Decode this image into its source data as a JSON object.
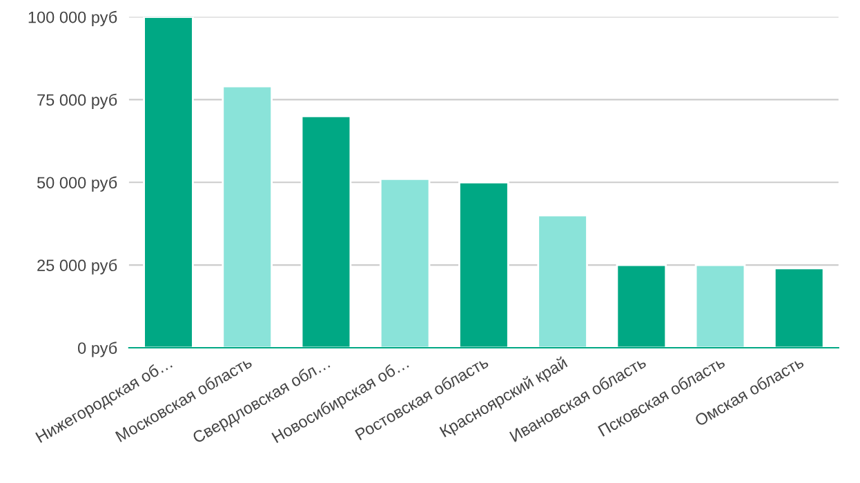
{
  "chart_data": {
    "type": "bar",
    "categories": [
      "Нижегородская об…",
      "Московская область",
      "Свердловская обл…",
      "Новосибирская об…",
      "Ростовская область",
      "Красноярский край",
      "Ивановская область",
      "Псковская область",
      "Омская область"
    ],
    "values": [
      100000,
      79000,
      70000,
      51000,
      50000,
      40000,
      25000,
      25000,
      24000
    ],
    "colors": [
      "#00a884",
      "#8ae3d9",
      "#00a884",
      "#8ae3d9",
      "#00a884",
      "#8ae3d9",
      "#00a884",
      "#8ae3d9",
      "#00a884"
    ],
    "ylim": [
      0,
      100000
    ],
    "yticks": [
      {
        "value": 0,
        "label": "0 руб"
      },
      {
        "value": 25000,
        "label": "25 000 руб"
      },
      {
        "value": 50000,
        "label": "50 000 руб"
      },
      {
        "value": 75000,
        "label": "75 000 руб"
      },
      {
        "value": 100000,
        "label": "100 000 руб"
      }
    ],
    "grid": "y"
  }
}
